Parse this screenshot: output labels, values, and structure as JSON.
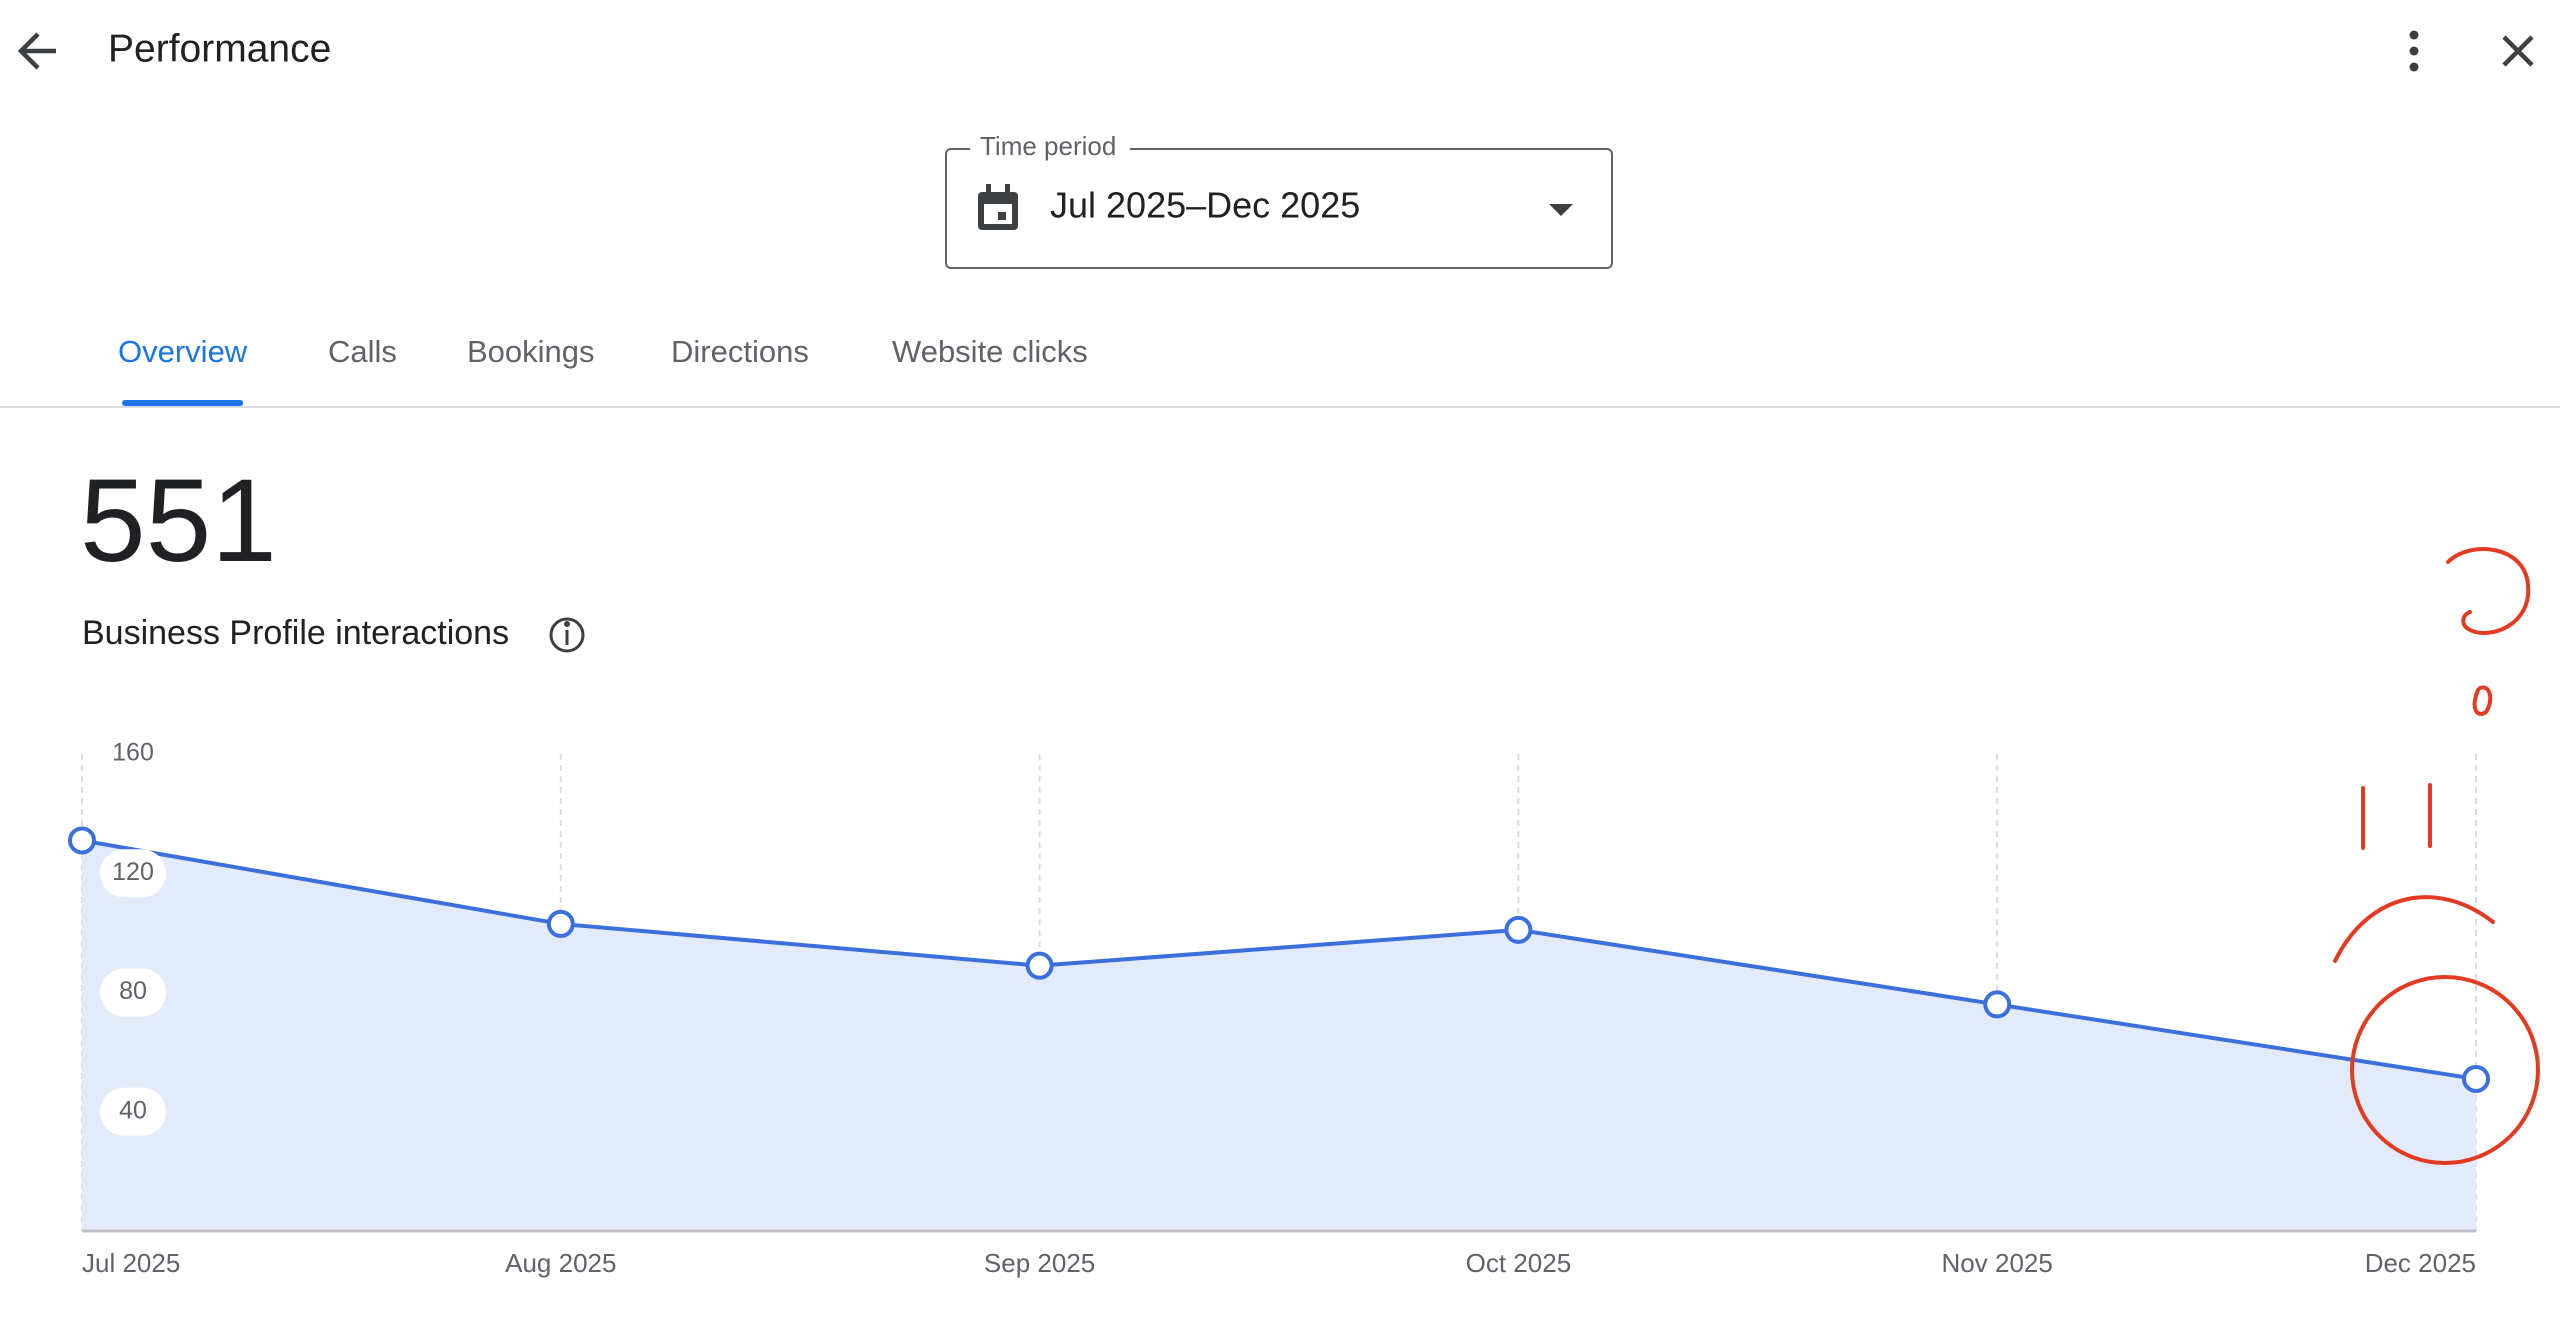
{
  "header": {
    "title": "Performance"
  },
  "time_period": {
    "label": "Time period",
    "value": "Jul 2025–Dec 2025"
  },
  "tabs": {
    "items": [
      "Overview",
      "Calls",
      "Bookings",
      "Directions",
      "Website clicks"
    ],
    "active": 0
  },
  "summary": {
    "value": 551,
    "label": "Business Profile interactions"
  },
  "chart_data": {
    "type": "area",
    "categories": [
      "Jul 2025",
      "Aug 2025",
      "Sep 2025",
      "Oct 2025",
      "Nov 2025",
      "Dec 2025"
    ],
    "series": [
      {
        "name": "Business Profile interactions",
        "color": "#3b6fdc",
        "values": [
          131,
          103,
          89,
          101,
          76,
          51
        ]
      }
    ],
    "ylim": [
      0,
      160
    ],
    "yticks": [
      40,
      80,
      120,
      160
    ],
    "grid": true
  }
}
